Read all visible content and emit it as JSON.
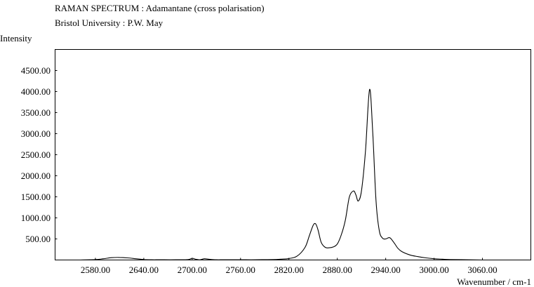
{
  "header": {
    "title": "RAMAN SPECTRUM : Adamantane (cross polarisation)",
    "subtitle": "Bristol University : P.W. May"
  },
  "chart_data": {
    "type": "line",
    "title": "RAMAN SPECTRUM : Adamantane (cross polarisation)",
    "subtitle": "Bristol University : P.W. May",
    "xlabel": "Wavenumber / cm-1",
    "ylabel": "Intensity",
    "xlim": [
      2530,
      3120
    ],
    "ylim": [
      0,
      5000
    ],
    "x_ticks": [
      2580,
      2640,
      2700,
      2760,
      2820,
      2880,
      2940,
      3000,
      3060
    ],
    "x_tick_labels": [
      "2580.00",
      "2640.00",
      "2700.00",
      "2760.00",
      "2820.00",
      "2880.00",
      "2940.00",
      "3000.00",
      "3060.00"
    ],
    "y_ticks": [
      500,
      1000,
      1500,
      2000,
      2500,
      3000,
      3500,
      4000,
      4500
    ],
    "y_tick_labels": [
      "500.00",
      "1000.00",
      "1500.00",
      "2000.00",
      "2500.00",
      "3000.00",
      "3500.00",
      "4000.00",
      "4500.00"
    ],
    "grid": false,
    "line_color": "#000000",
    "series": [
      {
        "x": [
          2560,
          2580,
          2590,
          2600,
          2610,
          2620,
          2630,
          2640,
          2650,
          2660,
          2680,
          2695,
          2700,
          2705,
          2710,
          2715,
          2720,
          2725,
          2730,
          2740,
          2760,
          2780,
          2800,
          2810,
          2820,
          2830,
          2840,
          2845,
          2850,
          2853,
          2856,
          2860,
          2865,
          2870,
          2875,
          2880,
          2885,
          2890,
          2895,
          2900,
          2903,
          2906,
          2910,
          2915,
          2920,
          2924,
          2928,
          2932,
          2936,
          2940,
          2945,
          2950,
          2955,
          2960,
          2970,
          2980,
          2990,
          3000,
          3010,
          3020,
          3040,
          3060,
          3080,
          3100
        ],
        "y": [
          0,
          10,
          30,
          55,
          60,
          50,
          30,
          10,
          5,
          5,
          5,
          10,
          40,
          15,
          5,
          30,
          20,
          10,
          5,
          5,
          5,
          5,
          10,
          20,
          35,
          90,
          300,
          560,
          820,
          860,
          720,
          420,
          300,
          290,
          310,
          380,
          600,
          950,
          1500,
          1640,
          1550,
          1400,
          1650,
          2600,
          4050,
          3000,
          1400,
          700,
          520,
          500,
          530,
          420,
          280,
          200,
          120,
          80,
          50,
          30,
          20,
          10,
          5,
          0,
          0,
          0
        ]
      }
    ]
  }
}
